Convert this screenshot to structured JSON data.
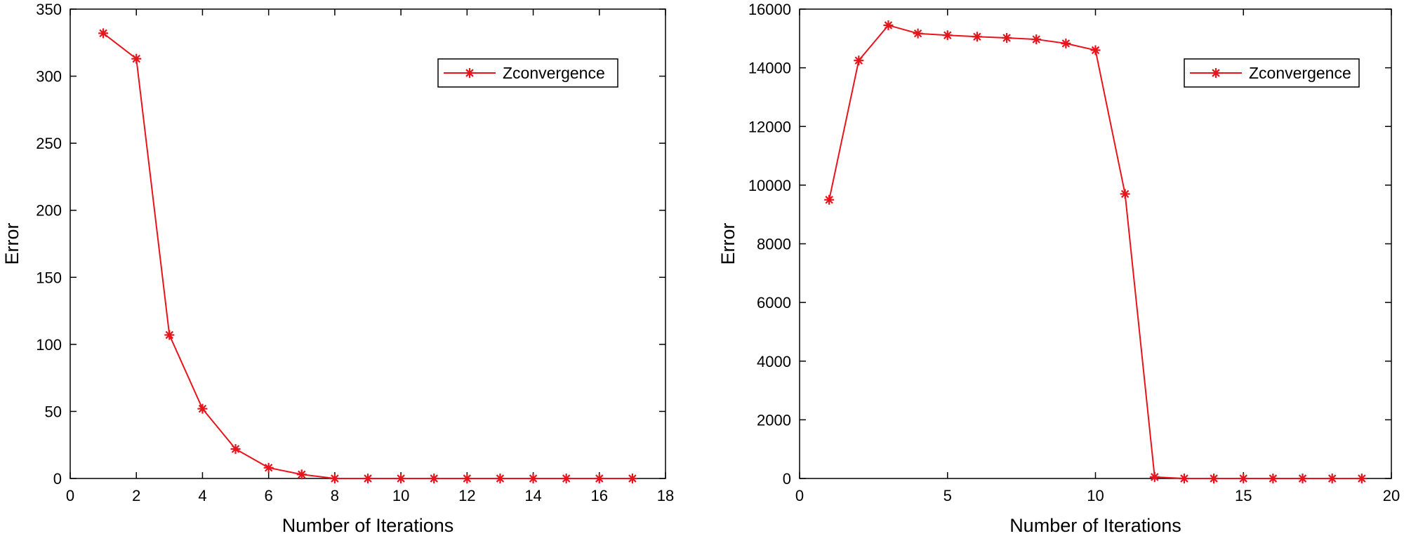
{
  "colors": {
    "series": "#e8141c",
    "axis": "#000000",
    "background": "#ffffff"
  },
  "marker_icon": "asterisk-icon",
  "chart_data": [
    {
      "type": "line",
      "xlabel": "Number of Iterations",
      "ylabel": "Error",
      "xlim": [
        0,
        18
      ],
      "ylim": [
        0,
        350
      ],
      "xticks": [
        0,
        2,
        4,
        6,
        8,
        10,
        12,
        14,
        16,
        18
      ],
      "yticks": [
        0,
        50,
        100,
        150,
        200,
        250,
        300,
        350
      ],
      "grid": false,
      "legend_position": "top-right",
      "series": [
        {
          "name": "Zconvergence",
          "x": [
            1,
            2,
            3,
            4,
            5,
            6,
            7,
            8,
            9,
            10,
            11,
            12,
            13,
            14,
            15,
            16,
            17
          ],
          "y": [
            332,
            313,
            107,
            52,
            22,
            8,
            3,
            0,
            0,
            0,
            0,
            0,
            0,
            0,
            0,
            0,
            0
          ]
        }
      ]
    },
    {
      "type": "line",
      "xlabel": "Number of Iterations",
      "ylabel": "Error",
      "xlim": [
        0,
        20
      ],
      "ylim": [
        0,
        16000
      ],
      "xticks": [
        0,
        5,
        10,
        15,
        20
      ],
      "yticks": [
        0,
        2000,
        4000,
        6000,
        8000,
        10000,
        12000,
        14000,
        16000
      ],
      "grid": false,
      "legend_position": "top-right",
      "series": [
        {
          "name": "Zconvergence",
          "x": [
            1,
            2,
            3,
            4,
            5,
            6,
            7,
            8,
            9,
            10,
            11,
            12,
            13,
            14,
            15,
            16,
            17,
            18,
            19
          ],
          "y": [
            9500,
            14250,
            15450,
            15170,
            15110,
            15060,
            15020,
            14970,
            14830,
            14600,
            9700,
            50,
            0,
            0,
            0,
            0,
            0,
            0,
            0
          ]
        }
      ]
    }
  ]
}
